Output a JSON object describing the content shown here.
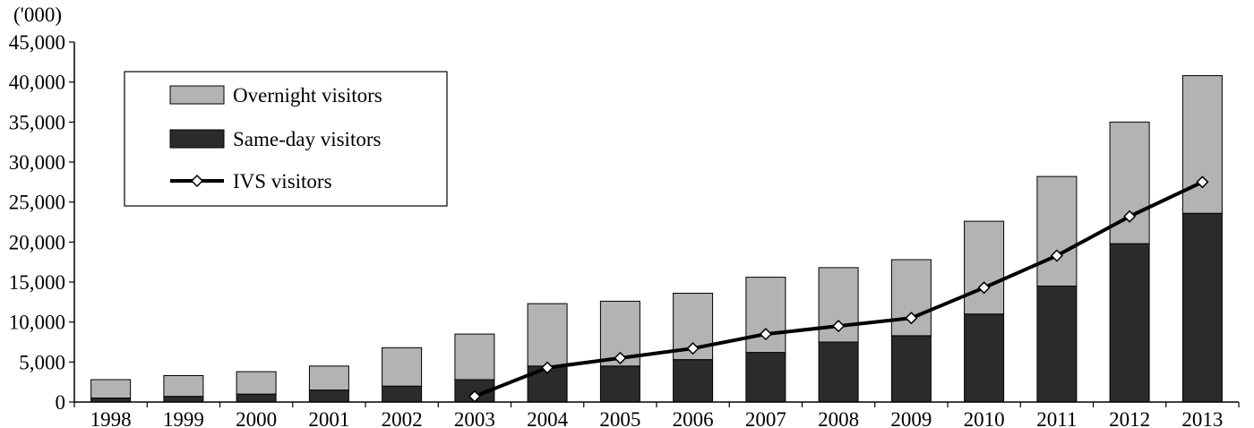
{
  "chart_data": {
    "type": "bar",
    "stacked": true,
    "unit_label": "('000)",
    "categories": [
      "1998",
      "1999",
      "2000",
      "2001",
      "2002",
      "2003",
      "2004",
      "2005",
      "2006",
      "2007",
      "2008",
      "2009",
      "2010",
      "2011",
      "2012",
      "2013"
    ],
    "series": [
      {
        "name": "Same-day visitors",
        "kind": "bar",
        "color": "#2b2b2b",
        "values": [
          500,
          700,
          1000,
          1500,
          2000,
          2800,
          4500,
          4500,
          5300,
          6200,
          7500,
          8300,
          11000,
          14500,
          19800,
          23600
        ]
      },
      {
        "name": "Overnight visitors",
        "kind": "bar",
        "color": "#b3b3b3",
        "values": [
          2300,
          2600,
          2800,
          3000,
          4800,
          5700,
          7800,
          8100,
          8300,
          9400,
          9300,
          9500,
          11600,
          13700,
          15200,
          17200
        ]
      },
      {
        "name": "IVS visitors",
        "kind": "line",
        "color": "#000000",
        "x": [
          "2003",
          "2004",
          "2005",
          "2006",
          "2007",
          "2008",
          "2009",
          "2010",
          "2011",
          "2012",
          "2013"
        ],
        "values": [
          700,
          4300,
          5500,
          6700,
          8500,
          9500,
          10500,
          14300,
          18300,
          23200,
          27500
        ]
      }
    ],
    "ylim": [
      0,
      45000
    ],
    "yticks": [
      0,
      5000,
      10000,
      15000,
      20000,
      25000,
      30000,
      35000,
      40000,
      45000
    ],
    "ytick_labels": [
      "0",
      "5,000",
      "10,000",
      "15,000",
      "20,000",
      "25,000",
      "30,000",
      "35,000",
      "40,000",
      "45,000"
    ],
    "legend": {
      "placement": "top-left",
      "entries": [
        "Overnight visitors",
        "Same-day visitors",
        "IVS visitors"
      ]
    },
    "grid": false
  }
}
